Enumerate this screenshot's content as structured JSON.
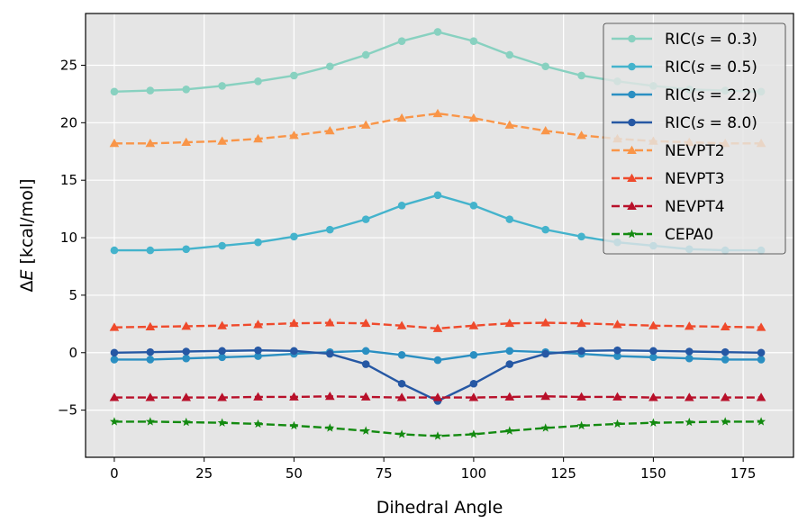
{
  "chart_data": {
    "type": "line",
    "title": "",
    "xlabel": "Dihedral Angle",
    "ylabel": "ΔE [kcal/mol]",
    "xlim": [
      -8,
      189
    ],
    "ylim": [
      -9.1,
      29.5
    ],
    "grid": true,
    "legend_position": "top-right",
    "x": [
      0,
      10,
      20,
      30,
      40,
      50,
      60,
      70,
      80,
      90,
      100,
      110,
      120,
      130,
      140,
      150,
      160,
      170,
      180
    ],
    "xticks": [
      0,
      25,
      50,
      75,
      100,
      125,
      150,
      175
    ],
    "yticks": [
      -5,
      0,
      5,
      10,
      15,
      20,
      25
    ],
    "ytick_labels": [
      "−5",
      "0",
      "5",
      "10",
      "15",
      "20",
      "25"
    ],
    "series": [
      {
        "name": "RIC(s = 0.3)",
        "name_prefix": "RIC(",
        "name_var": "s",
        "name_suffix": " = 0.3)",
        "color": "#88d1c0",
        "dash": false,
        "marker": "circle",
        "values": [
          22.7,
          22.8,
          22.9,
          23.2,
          23.6,
          24.1,
          24.9,
          25.9,
          27.1,
          27.9,
          27.1,
          25.9,
          24.9,
          24.1,
          23.6,
          23.2,
          22.9,
          22.8,
          22.7
        ]
      },
      {
        "name": "RIC(s = 0.5)",
        "name_prefix": "RIC(",
        "name_var": "s",
        "name_suffix": " = 0.5)",
        "color": "#44b3cc",
        "dash": false,
        "marker": "circle",
        "values": [
          8.9,
          8.9,
          9.0,
          9.3,
          9.6,
          10.1,
          10.7,
          11.6,
          12.8,
          13.7,
          12.8,
          11.6,
          10.7,
          10.1,
          9.6,
          9.3,
          9.0,
          8.9,
          8.9
        ]
      },
      {
        "name": "RIC(s = 2.2)",
        "name_prefix": "RIC(",
        "name_var": "s",
        "name_suffix": " = 2.2)",
        "color": "#2a8fc2",
        "dash": false,
        "marker": "circle",
        "values": [
          -0.6,
          -0.6,
          -0.5,
          -0.4,
          -0.3,
          -0.1,
          0.05,
          0.15,
          -0.2,
          -0.65,
          -0.2,
          0.15,
          0.05,
          -0.1,
          -0.3,
          -0.4,
          -0.5,
          -0.6,
          -0.6
        ]
      },
      {
        "name": "RIC(s = 8.0)",
        "name_prefix": "RIC(",
        "name_var": "s",
        "name_suffix": " = 8.0)",
        "color": "#2658a4",
        "dash": false,
        "marker": "circle",
        "values": [
          0.0,
          0.05,
          0.1,
          0.15,
          0.2,
          0.15,
          -0.1,
          -1.0,
          -2.7,
          -4.2,
          -2.7,
          -1.0,
          -0.1,
          0.15,
          0.2,
          0.15,
          0.1,
          0.05,
          0.0
        ]
      },
      {
        "name": "NEVPT2",
        "color": "#f99548",
        "dash": true,
        "marker": "triangle",
        "values": [
          18.2,
          18.2,
          18.3,
          18.4,
          18.6,
          18.9,
          19.3,
          19.8,
          20.4,
          20.8,
          20.4,
          19.8,
          19.3,
          18.9,
          18.6,
          18.4,
          18.3,
          18.2,
          18.2
        ]
      },
      {
        "name": "NEVPT3",
        "color": "#ef4a2c",
        "dash": true,
        "marker": "triangle",
        "values": [
          2.2,
          2.25,
          2.3,
          2.35,
          2.45,
          2.55,
          2.6,
          2.55,
          2.35,
          2.1,
          2.35,
          2.55,
          2.6,
          2.55,
          2.45,
          2.35,
          2.3,
          2.25,
          2.2
        ]
      },
      {
        "name": "NEVPT4",
        "color": "#b8102a",
        "dash": true,
        "marker": "triangle",
        "values": [
          -3.9,
          -3.9,
          -3.9,
          -3.9,
          -3.85,
          -3.85,
          -3.8,
          -3.85,
          -3.9,
          -3.9,
          -3.9,
          -3.85,
          -3.8,
          -3.85,
          -3.85,
          -3.9,
          -3.9,
          -3.9,
          -3.9
        ]
      },
      {
        "name": "CEPA0",
        "color": "#138a10",
        "dash": true,
        "marker": "star",
        "values": [
          -6.0,
          -6.0,
          -6.05,
          -6.1,
          -6.2,
          -6.35,
          -6.55,
          -6.8,
          -7.1,
          -7.25,
          -7.1,
          -6.8,
          -6.55,
          -6.35,
          -6.2,
          -6.1,
          -6.05,
          -6.0,
          -6.0
        ]
      }
    ]
  }
}
